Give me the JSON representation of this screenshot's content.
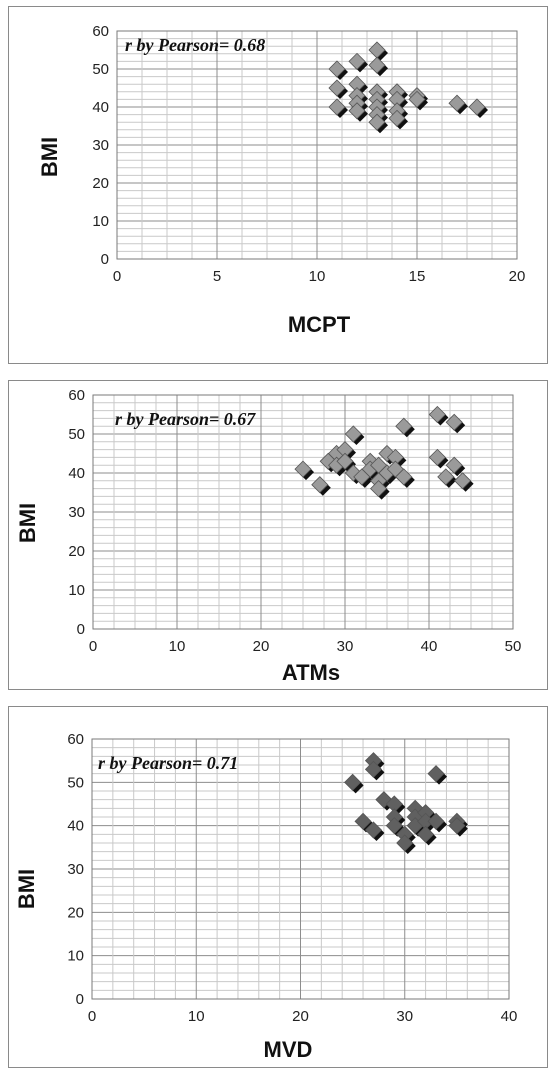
{
  "chart_data": [
    {
      "type": "scatter",
      "annotation": "r by Pearson= 0.68",
      "xlabel": "MCPT",
      "ylabel": "BMI",
      "xlim": [
        0,
        20
      ],
      "ylim": [
        0,
        60
      ],
      "xticks": [
        "0",
        "5",
        "10",
        "15",
        "20"
      ],
      "yticks": [
        "0",
        "10",
        "20",
        "30",
        "40",
        "50",
        "60"
      ],
      "grid": true,
      "marker_color": "#9a9a9a",
      "points": [
        {
          "x": 11,
          "y": 50
        },
        {
          "x": 11,
          "y": 45
        },
        {
          "x": 11,
          "y": 40
        },
        {
          "x": 12,
          "y": 52
        },
        {
          "x": 12,
          "y": 46
        },
        {
          "x": 12,
          "y": 43
        },
        {
          "x": 12,
          "y": 41
        },
        {
          "x": 12,
          "y": 39
        },
        {
          "x": 13,
          "y": 55
        },
        {
          "x": 13,
          "y": 51
        },
        {
          "x": 13,
          "y": 44
        },
        {
          "x": 13,
          "y": 42
        },
        {
          "x": 13,
          "y": 40
        },
        {
          "x": 13,
          "y": 38
        },
        {
          "x": 13,
          "y": 36
        },
        {
          "x": 14,
          "y": 44
        },
        {
          "x": 14,
          "y": 42
        },
        {
          "x": 14,
          "y": 39
        },
        {
          "x": 14,
          "y": 37
        },
        {
          "x": 15,
          "y": 43
        },
        {
          "x": 15,
          "y": 42
        },
        {
          "x": 17,
          "y": 41
        },
        {
          "x": 18,
          "y": 40
        }
      ]
    },
    {
      "type": "scatter",
      "annotation": "r by Pearson= 0.67",
      "xlabel": "ATMs",
      "ylabel": "BMI",
      "xlim": [
        0,
        50
      ],
      "ylim": [
        0,
        60
      ],
      "xticks": [
        "0",
        "10",
        "20",
        "30",
        "40",
        "50"
      ],
      "yticks": [
        "0",
        "10",
        "20",
        "30",
        "40",
        "50",
        "60"
      ],
      "grid": true,
      "marker_color": "#9a9a9a",
      "points": [
        {
          "x": 25,
          "y": 41
        },
        {
          "x": 27,
          "y": 37
        },
        {
          "x": 28,
          "y": 43
        },
        {
          "x": 29,
          "y": 45
        },
        {
          "x": 29,
          "y": 42
        },
        {
          "x": 30,
          "y": 46
        },
        {
          "x": 30,
          "y": 43
        },
        {
          "x": 31,
          "y": 50
        },
        {
          "x": 31,
          "y": 40
        },
        {
          "x": 32,
          "y": 39
        },
        {
          "x": 33,
          "y": 43
        },
        {
          "x": 33,
          "y": 41
        },
        {
          "x": 34,
          "y": 42
        },
        {
          "x": 34,
          "y": 38
        },
        {
          "x": 34,
          "y": 36
        },
        {
          "x": 35,
          "y": 45
        },
        {
          "x": 35,
          "y": 40
        },
        {
          "x": 36,
          "y": 44
        },
        {
          "x": 36,
          "y": 41
        },
        {
          "x": 37,
          "y": 52
        },
        {
          "x": 37,
          "y": 39
        },
        {
          "x": 41,
          "y": 55
        },
        {
          "x": 41,
          "y": 44
        },
        {
          "x": 42,
          "y": 39
        },
        {
          "x": 43,
          "y": 53
        },
        {
          "x": 43,
          "y": 42
        },
        {
          "x": 44,
          "y": 38
        }
      ]
    },
    {
      "type": "scatter",
      "annotation": "r by Pearson= 0.71",
      "xlabel": "MVD",
      "ylabel": "BMI",
      "xlim": [
        0,
        40
      ],
      "ylim": [
        0,
        60
      ],
      "xticks": [
        "0",
        "10",
        "20",
        "30",
        "40"
      ],
      "yticks": [
        "0",
        "10",
        "20",
        "30",
        "40",
        "50",
        "60"
      ],
      "grid": true,
      "marker_color": "#606060",
      "points": [
        {
          "x": 25,
          "y": 50
        },
        {
          "x": 26,
          "y": 41
        },
        {
          "x": 27,
          "y": 55
        },
        {
          "x": 27,
          "y": 53
        },
        {
          "x": 27,
          "y": 39
        },
        {
          "x": 28,
          "y": 46
        },
        {
          "x": 29,
          "y": 45
        },
        {
          "x": 29,
          "y": 42
        },
        {
          "x": 29,
          "y": 40
        },
        {
          "x": 30,
          "y": 38
        },
        {
          "x": 30,
          "y": 36
        },
        {
          "x": 31,
          "y": 44
        },
        {
          "x": 31,
          "y": 42
        },
        {
          "x": 31,
          "y": 40
        },
        {
          "x": 32,
          "y": 43
        },
        {
          "x": 32,
          "y": 41
        },
        {
          "x": 32,
          "y": 38
        },
        {
          "x": 33,
          "y": 52
        },
        {
          "x": 33,
          "y": 41
        },
        {
          "x": 35,
          "y": 41
        },
        {
          "x": 35,
          "y": 40
        }
      ]
    }
  ]
}
